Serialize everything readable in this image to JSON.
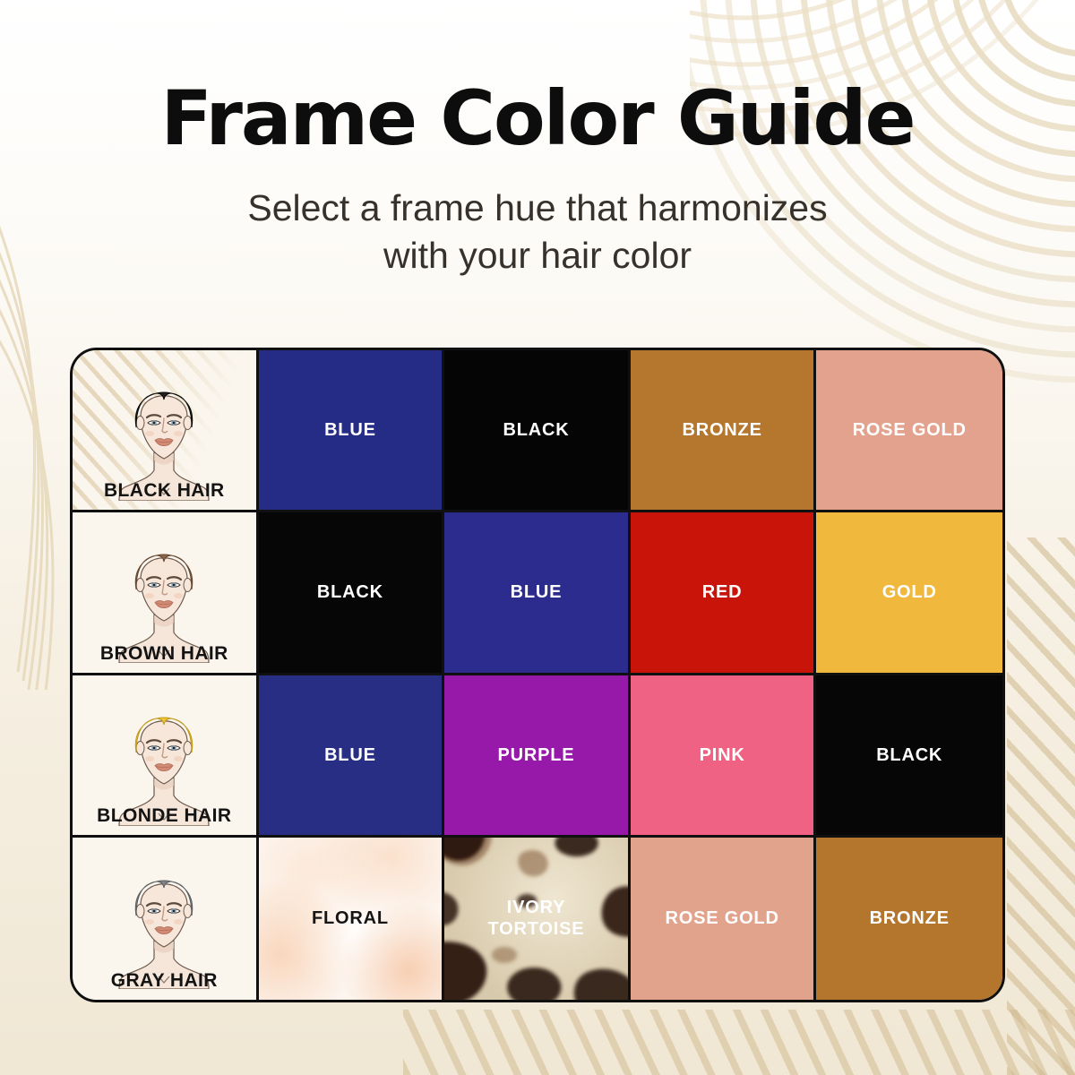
{
  "page": {
    "title": "Frame Color Guide",
    "subtitle_line1": "Select a frame hue that harmonizes",
    "subtitle_line2": "with your hair color"
  },
  "table": {
    "rows": [
      {
        "hair_label": "BLACK HAIR",
        "hair_color": "#241f1d",
        "hair_edge": "#0a0908",
        "cells": [
          {
            "label": "BLUE",
            "bg": "#252c86",
            "text": "#ffffff",
            "type": "solid"
          },
          {
            "label": "BLACK",
            "bg": "#050505",
            "text": "#ffffff",
            "type": "solid"
          },
          {
            "label": "BRONZE",
            "bg": "#b5762e",
            "text": "#ffffff",
            "type": "solid"
          },
          {
            "label": "ROSE GOLD",
            "bg": "#e2a28d",
            "text": "#ffffff",
            "type": "solid"
          }
        ]
      },
      {
        "hair_label": "BROWN HAIR",
        "hair_color": "#8b6548",
        "hair_edge": "#64452f",
        "cells": [
          {
            "label": "BLACK",
            "bg": "#060606",
            "text": "#ffffff",
            "type": "solid"
          },
          {
            "label": "BLUE",
            "bg": "#2b2c8e",
            "text": "#ffffff",
            "type": "solid"
          },
          {
            "label": "RED",
            "bg": "#c9140a",
            "text": "#ffffff",
            "type": "solid"
          },
          {
            "label": "GOLD",
            "bg": "#f0b83d",
            "text": "#ffffff",
            "type": "solid"
          }
        ]
      },
      {
        "hair_label": "BLONDE HAIR",
        "hair_color": "#ecc531",
        "hair_edge": "#c19a1b",
        "cells": [
          {
            "label": "BLUE",
            "bg": "#272e84",
            "text": "#ffffff",
            "type": "solid"
          },
          {
            "label": "PURPLE",
            "bg": "#9619a9",
            "text": "#ffffff",
            "type": "solid"
          },
          {
            "label": "PINK",
            "bg": "#f06284",
            "text": "#ffffff",
            "type": "solid"
          },
          {
            "label": "BLACK",
            "bg": "#060606",
            "text": "#ffffff",
            "type": "solid"
          }
        ]
      },
      {
        "hair_label": "GRAY HAIR",
        "hair_color": "#818386",
        "hair_edge": "#5c5e61",
        "cells": [
          {
            "label": "FLORAL",
            "bg": "",
            "text": "#151515",
            "type": "floral"
          },
          {
            "label": "IVORY TORTOISE",
            "bg": "",
            "text": "#ffffff",
            "type": "tortoise"
          },
          {
            "label": "ROSE GOLD",
            "bg": "#e2a38d",
            "text": "#ffffff",
            "type": "solid"
          },
          {
            "label": "BRONZE",
            "bg": "#b4752c",
            "text": "#ffffff",
            "type": "solid"
          }
        ]
      }
    ]
  }
}
